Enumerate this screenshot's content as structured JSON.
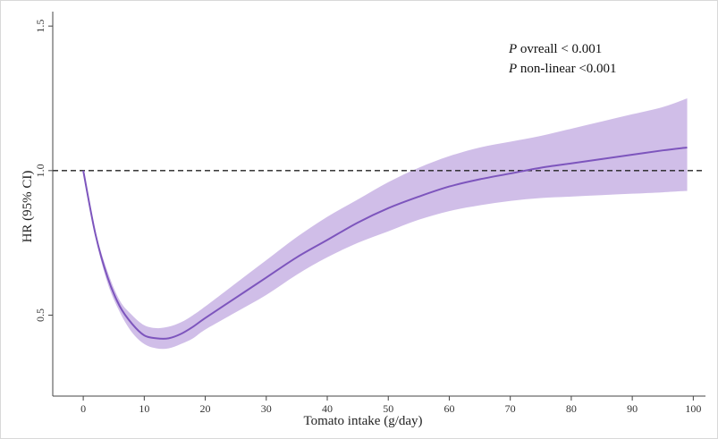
{
  "chart_data": {
    "type": "line",
    "xlabel": "Tomato intake (g/day)",
    "ylabel": "HR (95% CI)",
    "xlim": [
      -5,
      102
    ],
    "ylim": [
      0.22,
      1.55
    ],
    "xticks": [
      0,
      10,
      20,
      30,
      40,
      50,
      60,
      70,
      80,
      90,
      100
    ],
    "xtick_labels": [
      "0",
      "10",
      "20",
      "30",
      "40",
      "50",
      "60",
      "70",
      "80",
      "90",
      "100"
    ],
    "yticks": [
      0.5,
      1.0,
      1.5
    ],
    "ytick_labels": [
      "0.5",
      "1.0",
      "1.5"
    ],
    "reference_line": 1.0,
    "grid": false,
    "annotations": [
      {
        "italic": "P",
        "text": " ovreall < 0.001"
      },
      {
        "italic": "P",
        "text": " non-linear <0.001"
      }
    ],
    "colors": {
      "line": "#7d55bd",
      "band": "#cbb7e6",
      "reference": "#222222"
    },
    "series": [
      {
        "x": [
          0,
          2,
          4,
          6,
          8,
          10,
          12,
          14,
          16,
          18,
          20,
          25,
          30,
          35,
          40,
          45,
          50,
          55,
          60,
          65,
          70,
          75,
          80,
          85,
          90,
          95,
          99
        ],
        "y": [
          1.0,
          0.78,
          0.63,
          0.53,
          0.47,
          0.43,
          0.42,
          0.42,
          0.435,
          0.46,
          0.49,
          0.56,
          0.63,
          0.7,
          0.76,
          0.82,
          0.87,
          0.91,
          0.945,
          0.97,
          0.99,
          1.01,
          1.025,
          1.04,
          1.055,
          1.07,
          1.08
        ],
        "lower": [
          1.0,
          0.77,
          0.61,
          0.51,
          0.44,
          0.4,
          0.385,
          0.385,
          0.4,
          0.42,
          0.45,
          0.51,
          0.57,
          0.64,
          0.7,
          0.75,
          0.79,
          0.83,
          0.86,
          0.88,
          0.895,
          0.905,
          0.91,
          0.915,
          0.92,
          0.925,
          0.93
        ],
        "upper": [
          1.0,
          0.79,
          0.65,
          0.55,
          0.5,
          0.465,
          0.455,
          0.46,
          0.475,
          0.5,
          0.53,
          0.61,
          0.69,
          0.77,
          0.84,
          0.9,
          0.96,
          1.01,
          1.05,
          1.08,
          1.1,
          1.12,
          1.145,
          1.17,
          1.195,
          1.22,
          1.25
        ]
      }
    ]
  }
}
